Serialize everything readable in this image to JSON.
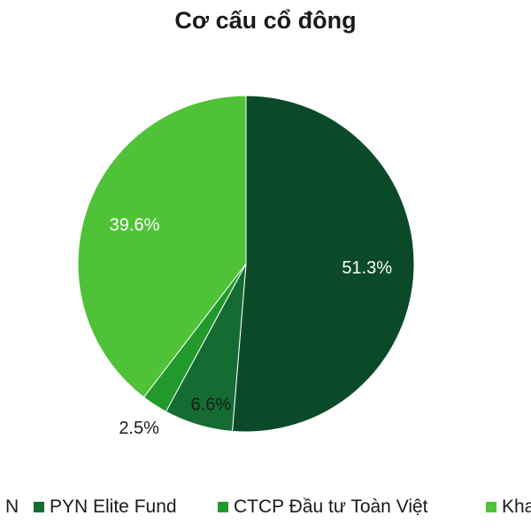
{
  "chart_data": {
    "type": "pie",
    "title": "Cơ cấu cổ đông",
    "series": [
      {
        "name": "N",
        "value": 51.3,
        "label": "51.3%",
        "color": "#0b4a29"
      },
      {
        "name": "PYN Elite Fund",
        "value": 6.6,
        "label": "6.6%",
        "color": "#146c32"
      },
      {
        "name": "CTCP Đầu tư Toàn Việt",
        "value": 2.5,
        "label": "2.5%",
        "color": "#229a2b"
      },
      {
        "name": "Kha",
        "value": 39.6,
        "label": "39.6%",
        "color": "#4fc237"
      }
    ],
    "legend_position": "bottom"
  }
}
